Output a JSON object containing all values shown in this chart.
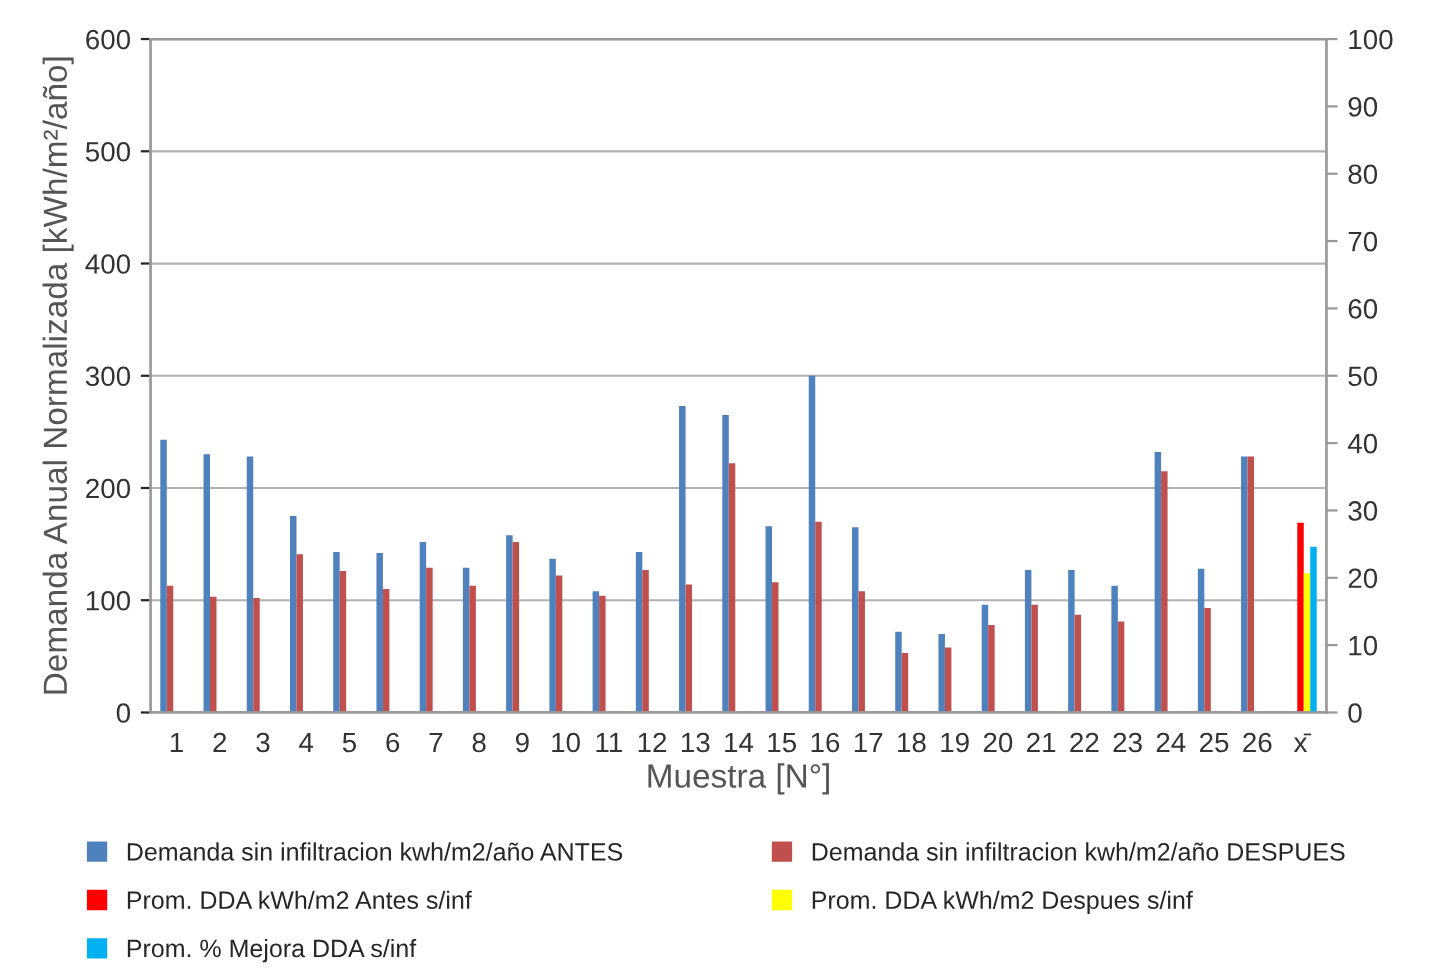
{
  "chart_data": {
    "type": "bar",
    "categories": [
      "1",
      "2",
      "3",
      "4",
      "5",
      "6",
      "7",
      "8",
      "9",
      "10",
      "11",
      "12",
      "13",
      "14",
      "15",
      "16",
      "17",
      "18",
      "19",
      "20",
      "21",
      "22",
      "23",
      "24",
      "25",
      "26",
      "x̄"
    ],
    "series": [
      {
        "name": "Demanda sin infiltracion kwh/m2/año ANTES",
        "color": "#4f81bd",
        "values": [
          243,
          230,
          228,
          175,
          143,
          142,
          152,
          129,
          158,
          137,
          108,
          143,
          273,
          265,
          166,
          300,
          165,
          72,
          70,
          96,
          127,
          127,
          113,
          232,
          128,
          228,
          null
        ]
      },
      {
        "name": "Demanda sin infiltracion kwh/m2/año DESPUES",
        "color": "#c0504d",
        "values": [
          113,
          103,
          102,
          141,
          126,
          110,
          129,
          113,
          152,
          122,
          104,
          127,
          114,
          222,
          116,
          170,
          108,
          53,
          58,
          78,
          96,
          87,
          81,
          215,
          93,
          228,
          null
        ]
      },
      {
        "name": "Prom. DDA kWh/m2 Antes s/inf",
        "color": "#ff0000",
        "values": [
          null,
          null,
          null,
          null,
          null,
          null,
          null,
          null,
          null,
          null,
          null,
          null,
          null,
          null,
          null,
          null,
          null,
          null,
          null,
          null,
          null,
          null,
          null,
          null,
          null,
          null,
          169
        ]
      },
      {
        "name": "Prom. DDA kWh/m2 Despues s/inf",
        "color": "#ffff00",
        "values": [
          null,
          null,
          null,
          null,
          null,
          null,
          null,
          null,
          null,
          null,
          null,
          null,
          null,
          null,
          null,
          null,
          null,
          null,
          null,
          null,
          null,
          null,
          null,
          null,
          null,
          null,
          124
        ]
      },
      {
        "name": "Prom. % Mejora DDA s/inf",
        "color": "#00b0f0",
        "axis": "y2",
        "values": [
          null,
          null,
          null,
          null,
          null,
          null,
          null,
          null,
          null,
          null,
          null,
          null,
          null,
          null,
          null,
          null,
          null,
          null,
          null,
          null,
          null,
          null,
          null,
          null,
          null,
          null,
          24.6
        ]
      }
    ],
    "xlabel": "Muestra [N°]",
    "ylabel": "Demanda Anual Normalizada [kWh/m²/año]",
    "ylim": [
      0,
      600
    ],
    "yticks": [
      0,
      100,
      200,
      300,
      400,
      500,
      600
    ],
    "y2lim": [
      0,
      100
    ],
    "y2ticks": [
      0,
      10,
      20,
      30,
      40,
      50,
      60,
      70,
      80,
      90,
      100
    ],
    "grid": "y",
    "legend": "bottom"
  }
}
